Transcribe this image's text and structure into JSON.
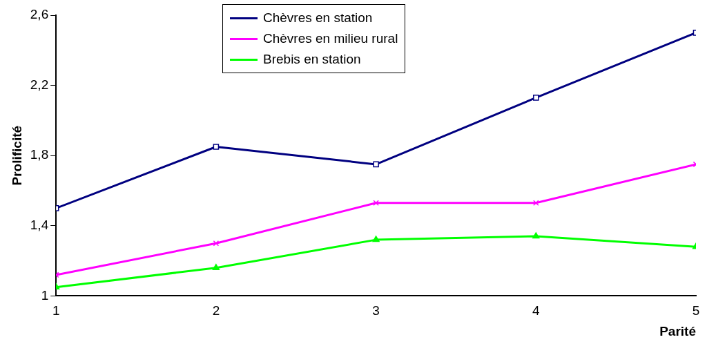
{
  "chart_data": {
    "type": "line",
    "xlabel": "Parité",
    "ylabel": "Prolificité",
    "x": [
      1,
      2,
      3,
      4,
      5
    ],
    "xlim": [
      1,
      5
    ],
    "xticks": [
      1,
      2,
      3,
      4,
      5
    ],
    "ylim": [
      1,
      2.6
    ],
    "yticks": [
      {
        "value": 1,
        "label": "1"
      },
      {
        "value": 1.4,
        "label": "1,4"
      },
      {
        "value": 1.8,
        "label": "1,8"
      },
      {
        "value": 2.2,
        "label": "2,2"
      },
      {
        "value": 2.6,
        "label": "2,6"
      }
    ],
    "grid": false,
    "legend": "top",
    "series": [
      {
        "name": "Chèvres en station",
        "color": "#000080",
        "marker": "square",
        "values": [
          1.5,
          1.85,
          1.75,
          2.13,
          2.5
        ]
      },
      {
        "name": "Chèvres en milieu rural",
        "color": "#ff00ff",
        "marker": "cross",
        "values": [
          1.12,
          1.3,
          1.53,
          1.53,
          1.75
        ]
      },
      {
        "name": "Brebis en station",
        "color": "#00ff00",
        "marker": "triangle",
        "values": [
          1.05,
          1.16,
          1.32,
          1.34,
          1.28
        ]
      }
    ]
  }
}
